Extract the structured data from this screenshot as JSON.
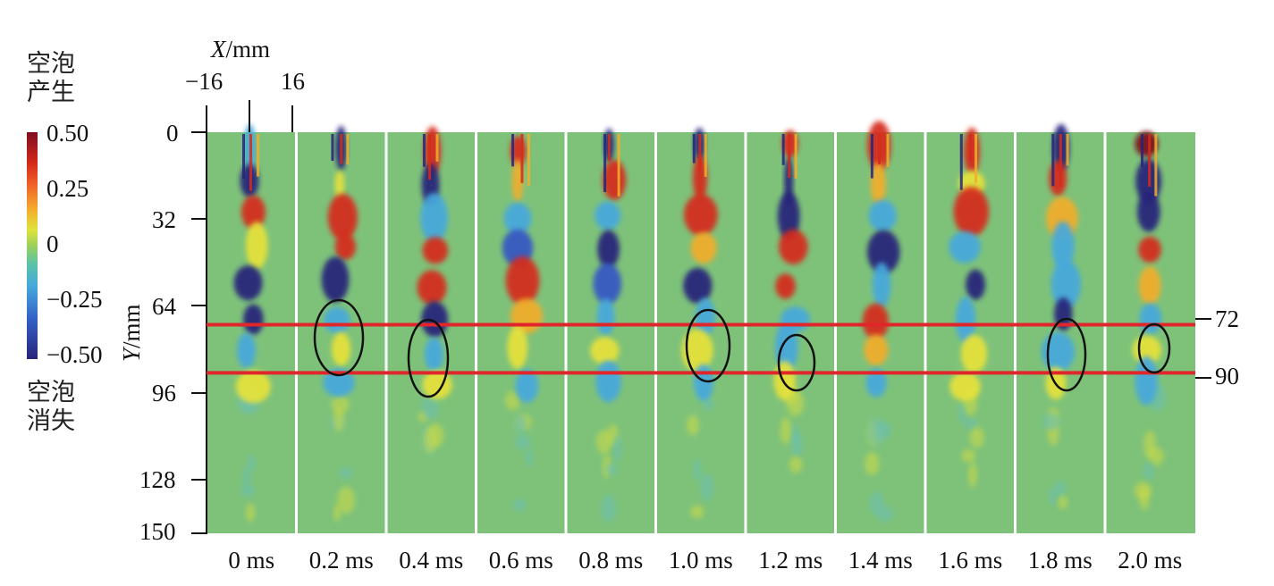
{
  "legend": {
    "top_label_line1": "空泡",
    "top_label_line2": "产生",
    "bottom_label_line1": "空泡",
    "bottom_label_line2": "消失",
    "colorbar_ticks": [
      "0.50",
      "0.25",
      "0",
      "−0.25",
      "−0.50"
    ],
    "colors": [
      "#7f0d1e",
      "#d62a1b",
      "#f3ad2c",
      "#9ad05c",
      "#47a8dd",
      "#26247a"
    ]
  },
  "x_axis": {
    "title_var": "X",
    "title_unit": "/mm",
    "ticks": [
      "−16",
      "16"
    ]
  },
  "y_axis": {
    "title_var": "Y",
    "title_unit": "/mm",
    "ticks": [
      "0",
      "32",
      "64",
      "96",
      "128",
      "150"
    ]
  },
  "reference_lines": [
    {
      "label": "72",
      "value": 72,
      "color": "#e0262a"
    },
    {
      "label": "90",
      "value": 90,
      "color": "#e0262a"
    }
  ],
  "frames": [
    {
      "label": "0 ms",
      "circled": false
    },
    {
      "label": "0.2 ms",
      "circled": true
    },
    {
      "label": "0.4 ms",
      "circled": true
    },
    {
      "label": "0.6 ms",
      "circled": false
    },
    {
      "label": "0.8 ms",
      "circled": false
    },
    {
      "label": "1.0 ms",
      "circled": true
    },
    {
      "label": "1.2 ms",
      "circled": true
    },
    {
      "label": "1.4 ms",
      "circled": false
    },
    {
      "label": "1.6 ms",
      "circled": false
    },
    {
      "label": "1.8 ms",
      "circled": true
    },
    {
      "label": "2.0 ms",
      "circled": true
    }
  ],
  "background_color": "#7ec27a"
}
